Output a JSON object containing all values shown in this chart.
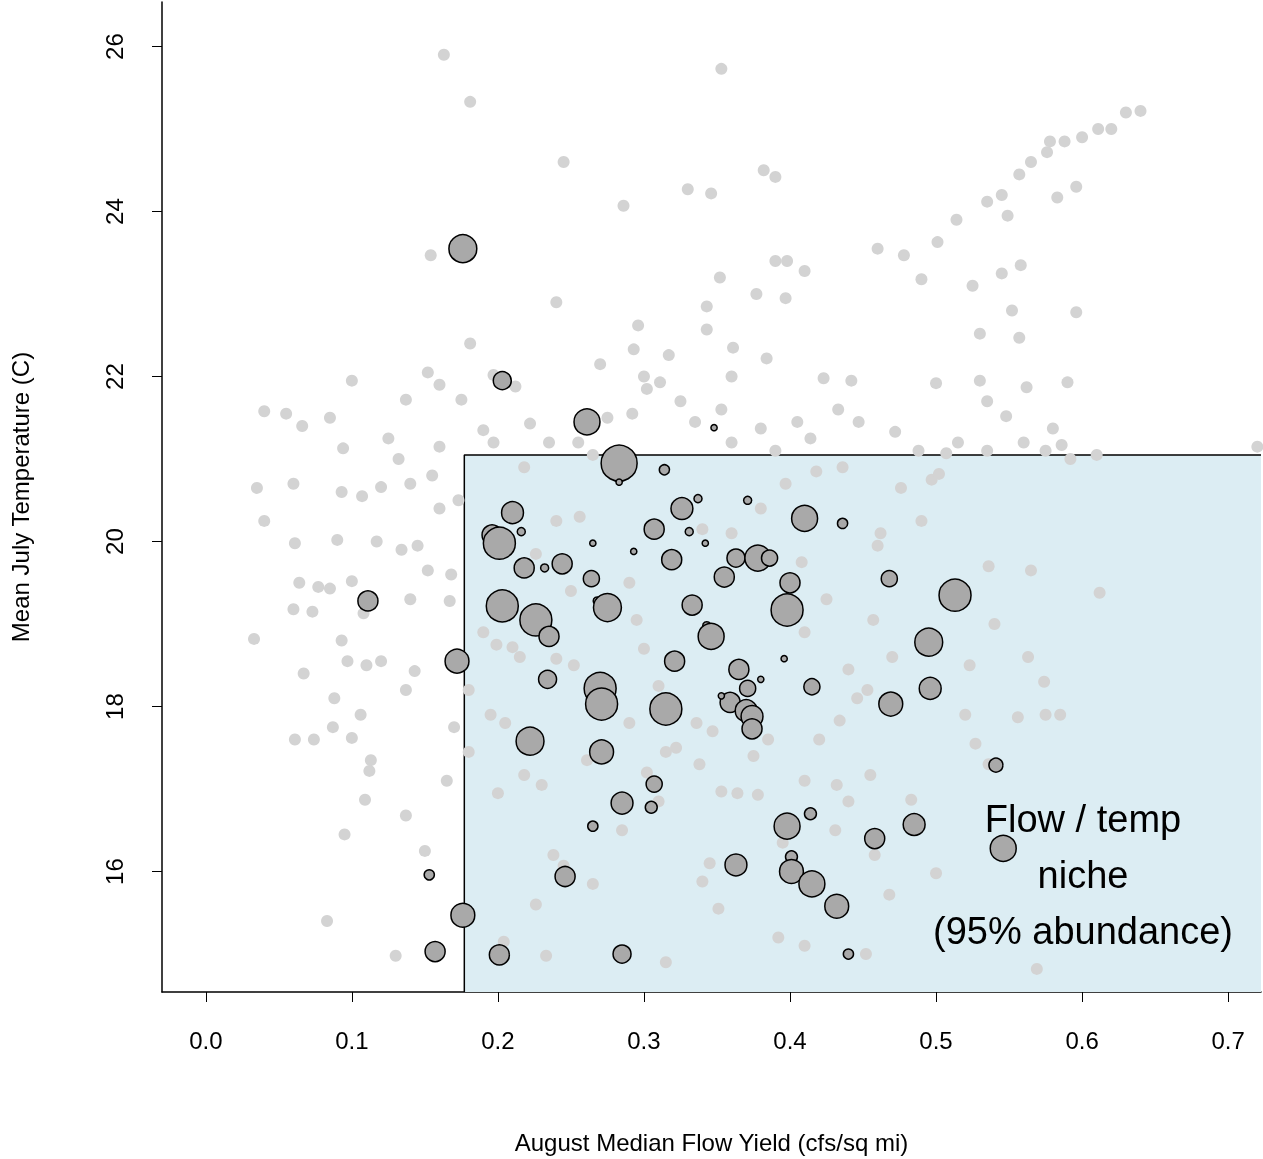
{
  "chart_data": {
    "type": "scatter",
    "xlabel": "August Median Flow Yield (cfs/sq mi)",
    "ylabel": "Mean July Temperature (C)",
    "xlim": [
      -0.03,
      0.7225
    ],
    "xticks": [
      {
        "value": 0,
        "label": "0.0"
      },
      0.1,
      0.2,
      0.3,
      0.4,
      0.5,
      0.6,
      0.7
    ],
    "ylim": [
      14.54,
      26.54
    ],
    "yticks": [
      16,
      18,
      20,
      22,
      24,
      26
    ],
    "grid": false,
    "marker": "circle",
    "annotations": [
      "Flow / temp\nniche\n(95% abundance)"
    ],
    "series": [
      {
        "type": "area",
        "marker": "none",
        "color": "#dcedf3",
        "x": [
          0.177,
          0.177,
          0.7225
        ],
        "values": [
          14.54,
          21.05,
          21.05
        ]
      },
      {
        "color": "#d3d3d3",
        "x": [
          0.163,
          0.181,
          0.353,
          0.245,
          0.286,
          0.33,
          0.346,
          0.382,
          0.39,
          0.154,
          0.24,
          0.352,
          0.377,
          0.39,
          0.398,
          0.41,
          0.397,
          0.343,
          0.361,
          0.296,
          0.293,
          0.27,
          0.317,
          0.343,
          0.384,
          0.423,
          0.442,
          0.46,
          0.478,
          0.49,
          0.501,
          0.514,
          0.525,
          0.535,
          0.545,
          0.557,
          0.565,
          0.576,
          0.588,
          0.6,
          0.611,
          0.62,
          0.63,
          0.64,
          0.578,
          0.558,
          0.545,
          0.549,
          0.53,
          0.583,
          0.596,
          0.596,
          0.557,
          0.552,
          0.59,
          0.53,
          0.535,
          0.548,
          0.562,
          0.5,
          0.472,
          0.447,
          0.488,
          0.507,
          0.56,
          0.575,
          0.58,
          0.586,
          0.592,
          0.61,
          0.535,
          0.497,
          0.502,
          0.515,
          0.72,
          0.612,
          0.565,
          0.536,
          0.54,
          0.523,
          0.563,
          0.574,
          0.575,
          0.585,
          0.556,
          0.52,
          0.527,
          0.536,
          0.5,
          0.468,
          0.458,
          0.483,
          0.569,
          0.452,
          0.315,
          0.233,
          0.204,
          0.13,
          0.083,
          0.095,
          0.15,
          0.137,
          0.109,
          0.113,
          0.112,
          0.061,
          0.074,
          0.087,
          0.1,
          0.067,
          0.088,
          0.106,
          0.137,
          0.143,
          0.11,
          0.12,
          0.097,
          0.033,
          0.06,
          0.073,
          0.093,
          0.085,
          0.1,
          0.108,
          0.064,
          0.077,
          0.061,
          0.09,
          0.035,
          0.04,
          0.055,
          0.066,
          0.1,
          0.085,
          0.094,
          0.04,
          0.06,
          0.093,
          0.107,
          0.12,
          0.14,
          0.155,
          0.16,
          0.125,
          0.132,
          0.137,
          0.152,
          0.175,
          0.19,
          0.197,
          0.117,
          0.134,
          0.145,
          0.16,
          0.173,
          0.152,
          0.168,
          0.14,
          0.167,
          0.19,
          0.199,
          0.21,
          0.215,
          0.24,
          0.252,
          0.18,
          0.18,
          0.195,
          0.205,
          0.218,
          0.23,
          0.261,
          0.2,
          0.238,
          0.245,
          0.226,
          0.265,
          0.302,
          0.336,
          0.338,
          0.353,
          0.364,
          0.378,
          0.41,
          0.432,
          0.44,
          0.455,
          0.395,
          0.431,
          0.345,
          0.34,
          0.351,
          0.392,
          0.42,
          0.434,
          0.446,
          0.44,
          0.453,
          0.47,
          0.457,
          0.41,
          0.425,
          0.408,
          0.46,
          0.462,
          0.49,
          0.476,
          0.34,
          0.36,
          0.38,
          0.397,
          0.418,
          0.436,
          0.39,
          0.405,
          0.36,
          0.38,
          0.325,
          0.302,
          0.292,
          0.275,
          0.255,
          0.235,
          0.222,
          0.218,
          0.24,
          0.256,
          0.226,
          0.25,
          0.29,
          0.295,
          0.31,
          0.3,
          0.29,
          0.322,
          0.375,
          0.347,
          0.385,
          0.31,
          0.315,
          0.41,
          0.285,
          0.165,
          0.17,
          0.3,
          0.311,
          0.265,
          0.335,
          0.353,
          0.36,
          0.414,
          0.433,
          0.197,
          0.212,
          0.181,
          0.16
        ],
        "values": [
          25.9,
          25.33,
          25.73,
          24.6,
          24.07,
          24.27,
          24.22,
          24.5,
          24.42,
          23.47,
          22.9,
          23.2,
          23.0,
          23.4,
          23.4,
          23.28,
          22.95,
          22.85,
          22.35,
          22.62,
          22.33,
          22.15,
          22.26,
          22.57,
          22.22,
          21.98,
          21.95,
          23.55,
          23.47,
          23.18,
          23.63,
          23.9,
          23.1,
          24.12,
          24.2,
          24.45,
          24.6,
          24.72,
          24.85,
          24.9,
          25.0,
          25.0,
          25.2,
          25.22,
          24.85,
          23.35,
          23.25,
          23.95,
          22.52,
          24.17,
          24.3,
          22.78,
          22.47,
          22.8,
          21.93,
          21.95,
          21.7,
          21.52,
          21.87,
          21.92,
          21.33,
          21.45,
          21.1,
          21.07,
          21.2,
          21.1,
          21.37,
          21.17,
          21.0,
          21.05,
          21.1,
          20.75,
          20.82,
          21.2,
          21.15,
          19.38,
          19.65,
          19.7,
          19.0,
          18.5,
          18.6,
          18.3,
          17.9,
          17.9,
          17.87,
          17.9,
          17.55,
          17.3,
          15.98,
          15.72,
          16.2,
          16.87,
          14.82,
          15.0,
          14.9,
          14.98,
          15.15,
          14.98,
          15.4,
          16.45,
          16.25,
          16.68,
          16.87,
          17.35,
          17.22,
          17.6,
          17.6,
          17.75,
          17.62,
          18.4,
          18.1,
          17.9,
          18.2,
          18.43,
          18.5,
          18.55,
          18.55,
          18.82,
          19.18,
          19.15,
          18.8,
          19.43,
          19.52,
          19.13,
          19.5,
          19.45,
          19.98,
          20.02,
          20.65,
          21.58,
          21.55,
          21.4,
          21.95,
          21.5,
          21.13,
          20.25,
          20.7,
          20.6,
          20.55,
          20.66,
          20.7,
          20.8,
          21.15,
          21.25,
          21.0,
          21.72,
          22.05,
          21.72,
          21.35,
          21.2,
          20.0,
          19.9,
          19.95,
          20.4,
          20.5,
          19.65,
          19.6,
          19.3,
          19.28,
          18.9,
          18.75,
          18.72,
          18.6,
          18.58,
          18.5,
          18.2,
          17.45,
          17.9,
          17.8,
          17.17,
          17.05,
          17.35,
          16.95,
          16.2,
          16.07,
          15.6,
          15.85,
          17.2,
          17.8,
          17.3,
          16.97,
          16.95,
          16.93,
          17.1,
          17.05,
          16.85,
          17.17,
          16.35,
          16.5,
          16.1,
          15.88,
          15.55,
          15.2,
          17.6,
          17.83,
          18.1,
          18.45,
          18.2,
          18.6,
          19.05,
          18.9,
          19.3,
          19.75,
          19.95,
          20.1,
          20.25,
          20.65,
          20.15,
          20.1,
          20.4,
          20.7,
          20.85,
          20.9,
          21.1,
          21.45,
          21.2,
          21.37,
          21.7,
          21.85,
          21.55,
          21.5,
          21.2,
          21.2,
          21.43,
          20.9,
          20.25,
          20.3,
          19.85,
          19.4,
          19.5,
          19.05,
          18.25,
          18.7,
          17.8,
          17.5,
          17.4,
          17.7,
          17.6,
          16.85,
          17.45,
          15.1,
          16.5,
          17.1,
          17.75,
          22.0,
          21.93,
          21.05,
          21.45,
          21.6,
          22.0,
          21.25,
          21.6,
          22.02,
          21.88,
          22.4,
          21.9
        ]
      },
      {
        "type": "bubble",
        "color": "#a9a9a9",
        "x": [
          0.176,
          0.203,
          0.261,
          0.283,
          0.314,
          0.21,
          0.196,
          0.201,
          0.216,
          0.265,
          0.293,
          0.307,
          0.326,
          0.337,
          0.331,
          0.342,
          0.371,
          0.41,
          0.436,
          0.218,
          0.232,
          0.244,
          0.264,
          0.319,
          0.363,
          0.355,
          0.378,
          0.386,
          0.4,
          0.398,
          0.468,
          0.513,
          0.203,
          0.226,
          0.235,
          0.268,
          0.275,
          0.333,
          0.343,
          0.346,
          0.396,
          0.38,
          0.365,
          0.321,
          0.172,
          0.111,
          0.234,
          0.27,
          0.271,
          0.315,
          0.359,
          0.371,
          0.37,
          0.374,
          0.374,
          0.353,
          0.415,
          0.495,
          0.496,
          0.469,
          0.222,
          0.271,
          0.307,
          0.305,
          0.285,
          0.265,
          0.414,
          0.398,
          0.401,
          0.401,
          0.415,
          0.432,
          0.363,
          0.458,
          0.485,
          0.541,
          0.546,
          0.246,
          0.153,
          0.176,
          0.157,
          0.201,
          0.285,
          0.44,
          0.348,
          0.283
        ],
        "values": [
          23.55,
          21.95,
          21.45,
          20.95,
          20.87,
          20.35,
          20.08,
          19.98,
          20.12,
          19.98,
          19.88,
          20.15,
          20.4,
          20.52,
          20.12,
          19.98,
          20.5,
          20.28,
          20.22,
          19.68,
          19.68,
          19.73,
          19.55,
          19.78,
          19.8,
          19.57,
          19.8,
          19.8,
          19.5,
          19.17,
          19.55,
          19.35,
          19.22,
          19.05,
          18.85,
          19.28,
          19.2,
          19.23,
          18.98,
          18.85,
          18.58,
          18.33,
          18.45,
          18.55,
          18.55,
          19.28,
          18.33,
          18.22,
          18.03,
          17.97,
          18.05,
          18.22,
          17.95,
          17.88,
          17.73,
          18.13,
          18.24,
          18.78,
          18.22,
          18.03,
          17.58,
          17.45,
          17.06,
          16.78,
          16.83,
          16.55,
          16.7,
          16.55,
          16.18,
          16.0,
          15.85,
          15.58,
          16.08,
          16.4,
          16.57,
          17.29,
          16.28,
          15.94,
          15.96,
          15.47,
          15.03,
          14.99,
          15.0,
          15.0,
          21.38,
          20.72
        ],
        "sizes": [
          0.6,
          0.25,
          0.52,
          1,
          0.08,
          0.37,
          0.31,
          0.79,
          0.05,
          0.03,
          0.03,
          0.31,
          0.37,
          0.05,
          0.05,
          0.03,
          0.05,
          0.52,
          0.08,
          0.31,
          0.05,
          0.31,
          0.2,
          0.31,
          0.25,
          0.31,
          0.52,
          0.2,
          0.31,
          0.79,
          0.2,
          0.79,
          0.79,
          0.79,
          0.31,
          0.05,
          0.6,
          0.31,
          0.05,
          0.52,
          0.03,
          0.03,
          0.31,
          0.31,
          0.44,
          0.31,
          0.25,
          0.79,
          0.79,
          0.79,
          0.31,
          0.2,
          0.37,
          0.37,
          0.31,
          0.03,
          0.2,
          0.6,
          0.37,
          0.44,
          0.6,
          0.44,
          0.2,
          0.11,
          0.37,
          0.08,
          0.11,
          0.52,
          0.11,
          0.44,
          0.52,
          0.44,
          0.37,
          0.31,
          0.37,
          0.15,
          0.52,
          0.31,
          0.08,
          0.44,
          0.31,
          0.31,
          0.25,
          0.08,
          0.03,
          0.03
        ]
      }
    ]
  }
}
